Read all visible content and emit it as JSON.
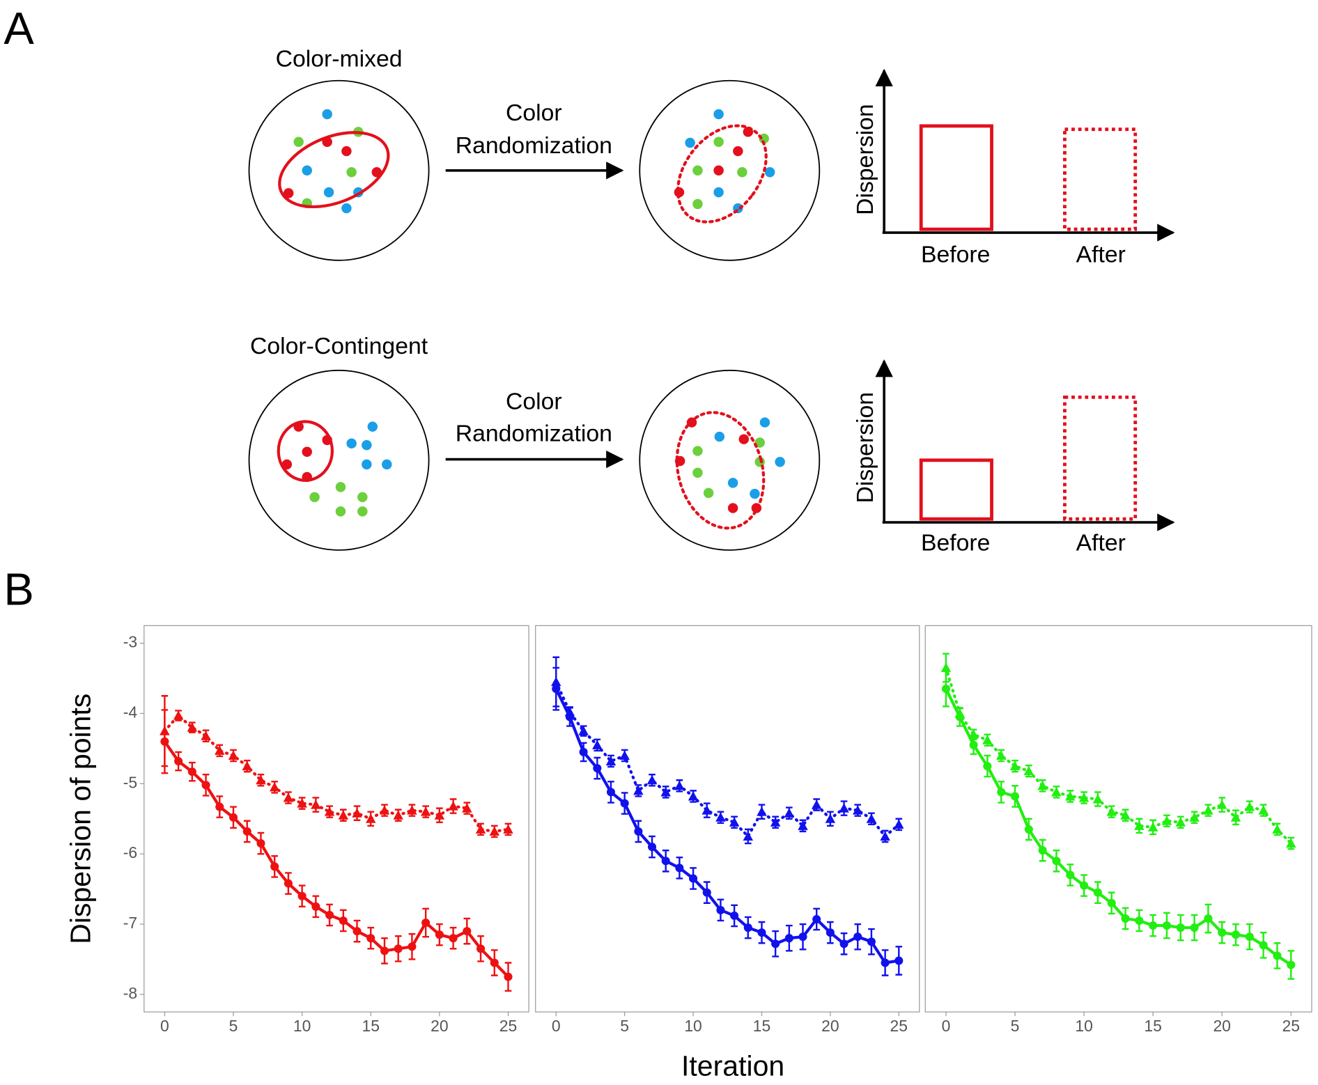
{
  "panel_a": {
    "label": "A",
    "rows": [
      {
        "title": "Color-mixed",
        "arrow_text": [
          "Color",
          "Randomization"
        ],
        "axis_label": "Dispersion",
        "bar_labels": [
          "Before",
          "After"
        ]
      },
      {
        "title": "Color-Contingent",
        "arrow_text": [
          "Color",
          "Randomization"
        ],
        "axis_label": "Dispersion",
        "bar_labels": [
          "Before",
          "After"
        ]
      }
    ]
  },
  "panel_b": {
    "label": "B",
    "ylabel": "Dispersion of points",
    "xlabel": "Iteration"
  },
  "chart_data": [
    {
      "type": "line",
      "x": [
        0,
        1,
        2,
        3,
        4,
        5,
        6,
        7,
        8,
        9,
        10,
        11,
        12,
        13,
        14,
        15,
        16,
        17,
        18,
        19,
        20,
        21,
        22,
        23,
        24,
        25
      ],
      "xlim": [
        -1.5,
        26.5
      ],
      "ylim": [
        -8.25,
        -2.75
      ],
      "xticks": [
        0,
        5,
        10,
        15,
        20,
        25
      ],
      "yticks": [
        -3,
        -4,
        -5,
        -6,
        -7,
        -8
      ],
      "series": [
        {
          "color": "#ee1111",
          "line_style": "solid",
          "marker": "circle",
          "values": [
            -4.4,
            -4.68,
            -4.83,
            -5.02,
            -5.33,
            -5.48,
            -5.68,
            -5.85,
            -6.18,
            -6.42,
            -6.6,
            -6.75,
            -6.87,
            -6.95,
            -7.1,
            -7.2,
            -7.38,
            -7.35,
            -7.32,
            -6.98,
            -7.15,
            -7.2,
            -7.1,
            -7.35,
            -7.55,
            -7.75
          ],
          "errors": [
            0.45,
            0.13,
            0.13,
            0.15,
            0.15,
            0.15,
            0.15,
            0.15,
            0.15,
            0.15,
            0.15,
            0.15,
            0.15,
            0.15,
            0.15,
            0.15,
            0.18,
            0.18,
            0.18,
            0.2,
            0.15,
            0.15,
            0.18,
            0.18,
            0.18,
            0.2
          ]
        },
        {
          "color": "#ee1111",
          "line_style": "dotted",
          "marker": "triangle",
          "values": [
            -4.25,
            -4.03,
            -4.2,
            -4.32,
            -4.53,
            -4.6,
            -4.75,
            -4.95,
            -5.05,
            -5.2,
            -5.28,
            -5.3,
            -5.4,
            -5.45,
            -5.42,
            -5.5,
            -5.38,
            -5.45,
            -5.38,
            -5.4,
            -5.45,
            -5.32,
            -5.35,
            -5.65,
            -5.68,
            -5.65
          ],
          "errors": [
            0.5,
            0.07,
            0.07,
            0.08,
            0.08,
            0.08,
            0.08,
            0.08,
            0.08,
            0.08,
            0.08,
            0.1,
            0.08,
            0.08,
            0.1,
            0.1,
            0.08,
            0.08,
            0.08,
            0.08,
            0.1,
            0.1,
            0.08,
            0.08,
            0.08,
            0.08
          ]
        }
      ]
    },
    {
      "type": "line",
      "x": [
        0,
        1,
        2,
        3,
        4,
        5,
        6,
        7,
        8,
        9,
        10,
        11,
        12,
        13,
        14,
        15,
        16,
        17,
        18,
        19,
        20,
        21,
        22,
        23,
        24,
        25
      ],
      "xlim": [
        -1.5,
        26.5
      ],
      "ylim": [
        -8.25,
        -2.75
      ],
      "xticks": [
        0,
        5,
        10,
        15,
        20,
        25
      ],
      "series": [
        {
          "color": "#1111ee",
          "line_style": "solid",
          "marker": "circle",
          "values": [
            -3.65,
            -4.05,
            -4.55,
            -4.78,
            -5.12,
            -5.28,
            -5.68,
            -5.9,
            -6.1,
            -6.2,
            -6.35,
            -6.55,
            -6.8,
            -6.88,
            -7.05,
            -7.12,
            -7.28,
            -7.2,
            -7.18,
            -6.93,
            -7.12,
            -7.28,
            -7.18,
            -7.25,
            -7.55,
            -7.52
          ],
          "errors": [
            0.3,
            0.13,
            0.13,
            0.15,
            0.15,
            0.15,
            0.15,
            0.15,
            0.15,
            0.15,
            0.15,
            0.15,
            0.15,
            0.15,
            0.15,
            0.15,
            0.18,
            0.18,
            0.18,
            0.15,
            0.15,
            0.15,
            0.18,
            0.18,
            0.18,
            0.2
          ]
        },
        {
          "color": "#1111ee",
          "line_style": "dotted",
          "marker": "triangle",
          "values": [
            -3.55,
            -3.98,
            -4.25,
            -4.45,
            -4.68,
            -4.6,
            -5.1,
            -4.95,
            -5.12,
            -5.03,
            -5.18,
            -5.38,
            -5.48,
            -5.55,
            -5.75,
            -5.4,
            -5.55,
            -5.42,
            -5.6,
            -5.3,
            -5.5,
            -5.35,
            -5.38,
            -5.5,
            -5.75,
            -5.58
          ],
          "errors": [
            0.35,
            0.07,
            0.07,
            0.08,
            0.08,
            0.08,
            0.08,
            0.08,
            0.08,
            0.08,
            0.08,
            0.1,
            0.08,
            0.08,
            0.1,
            0.1,
            0.08,
            0.08,
            0.08,
            0.08,
            0.1,
            0.1,
            0.08,
            0.08,
            0.08,
            0.08
          ]
        }
      ]
    },
    {
      "type": "line",
      "x": [
        0,
        1,
        2,
        3,
        4,
        5,
        6,
        7,
        8,
        9,
        10,
        11,
        12,
        13,
        14,
        15,
        16,
        17,
        18,
        19,
        20,
        21,
        22,
        23,
        24,
        25
      ],
      "xlim": [
        -1.5,
        26.5
      ],
      "ylim": [
        -8.25,
        -2.75
      ],
      "xticks": [
        0,
        5,
        10,
        15,
        20,
        25
      ],
      "series": [
        {
          "color": "#22ee11",
          "line_style": "solid",
          "marker": "circle",
          "values": [
            -3.65,
            -4.05,
            -4.45,
            -4.75,
            -5.12,
            -5.18,
            -5.65,
            -5.95,
            -6.1,
            -6.3,
            -6.45,
            -6.55,
            -6.7,
            -6.92,
            -6.95,
            -7.02,
            -7.02,
            -7.05,
            -7.05,
            -6.92,
            -7.12,
            -7.15,
            -7.18,
            -7.3,
            -7.45,
            -7.58
          ],
          "errors": [
            0.25,
            0.13,
            0.13,
            0.15,
            0.15,
            0.15,
            0.15,
            0.15,
            0.15,
            0.15,
            0.15,
            0.15,
            0.15,
            0.15,
            0.15,
            0.15,
            0.18,
            0.18,
            0.18,
            0.2,
            0.15,
            0.15,
            0.18,
            0.18,
            0.18,
            0.2
          ]
        },
        {
          "color": "#22ee11",
          "line_style": "dotted",
          "marker": "triangle",
          "values": [
            -3.35,
            -4.0,
            -4.3,
            -4.38,
            -4.6,
            -4.75,
            -4.82,
            -5.03,
            -5.12,
            -5.18,
            -5.2,
            -5.22,
            -5.4,
            -5.45,
            -5.6,
            -5.62,
            -5.53,
            -5.55,
            -5.48,
            -5.38,
            -5.3,
            -5.48,
            -5.33,
            -5.38,
            -5.65,
            -5.85
          ],
          "errors": [
            0.2,
            0.07,
            0.07,
            0.08,
            0.08,
            0.08,
            0.08,
            0.08,
            0.08,
            0.08,
            0.08,
            0.1,
            0.08,
            0.08,
            0.1,
            0.1,
            0.08,
            0.08,
            0.08,
            0.08,
            0.1,
            0.1,
            0.08,
            0.08,
            0.08,
            0.08
          ]
        }
      ]
    }
  ]
}
